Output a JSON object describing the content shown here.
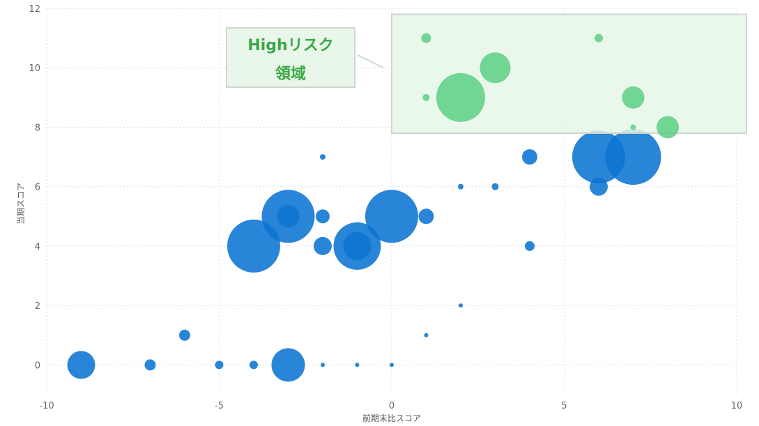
{
  "chart_data": {
    "type": "scatter",
    "xlabel": "前期末比スコア",
    "ylabel": "当期スコア",
    "xlim": [
      -10,
      10
    ],
    "ylim": [
      -1,
      12
    ],
    "x_ticks": [
      -10,
      -5,
      0,
      5,
      10
    ],
    "x_tick_labels": [
      "-10",
      "-5",
      "0",
      "5",
      "10"
    ],
    "y_ticks": [
      0,
      2,
      4,
      6,
      8,
      10,
      12
    ],
    "y_tick_labels": [
      "0",
      "2",
      "4",
      "6",
      "8",
      "10",
      "12"
    ],
    "grid": true,
    "colors": {
      "normal": "#0b74d1",
      "high_risk": "#5ccf84",
      "region_fill": "#e6f6e7",
      "region_stroke": "#cfd5cf",
      "callout_text": "#3aa845"
    },
    "high_risk_region": {
      "x_range": [
        0,
        10
      ],
      "y_range": [
        7.8,
        11.8
      ],
      "label_line1": "Highリスク",
      "label_line2": "領域"
    },
    "points": [
      {
        "x": -9,
        "y": 0,
        "r": 20,
        "risk": "normal"
      },
      {
        "x": -7,
        "y": 0,
        "r": 8,
        "risk": "normal"
      },
      {
        "x": -6,
        "y": 1,
        "r": 8,
        "risk": "normal"
      },
      {
        "x": -5,
        "y": 0,
        "r": 6,
        "risk": "normal"
      },
      {
        "x": -4,
        "y": 0,
        "r": 6,
        "risk": "normal"
      },
      {
        "x": -4,
        "y": 4,
        "r": 38,
        "risk": "normal"
      },
      {
        "x": -3,
        "y": 0,
        "r": 24,
        "risk": "normal"
      },
      {
        "x": -3,
        "y": 5,
        "r": 38,
        "risk": "normal"
      },
      {
        "x": -3,
        "y": 5,
        "r": 16,
        "risk": "normal"
      },
      {
        "x": -2,
        "y": 0,
        "r": 3,
        "risk": "normal"
      },
      {
        "x": -2,
        "y": 4,
        "r": 13,
        "risk": "normal"
      },
      {
        "x": -2,
        "y": 5,
        "r": 10,
        "risk": "normal"
      },
      {
        "x": -2,
        "y": 7,
        "r": 4,
        "risk": "normal"
      },
      {
        "x": -1,
        "y": 0,
        "r": 3,
        "risk": "normal"
      },
      {
        "x": -1,
        "y": 4,
        "r": 34,
        "risk": "normal"
      },
      {
        "x": -1,
        "y": 4,
        "r": 20,
        "risk": "normal"
      },
      {
        "x": 0,
        "y": 0,
        "r": 3,
        "risk": "normal"
      },
      {
        "x": 0,
        "y": 5,
        "r": 38,
        "risk": "normal"
      },
      {
        "x": 1,
        "y": 1,
        "r": 3,
        "risk": "normal"
      },
      {
        "x": 1,
        "y": 5,
        "r": 11,
        "risk": "normal"
      },
      {
        "x": 2,
        "y": 2,
        "r": 3,
        "risk": "normal"
      },
      {
        "x": 2,
        "y": 6,
        "r": 4,
        "risk": "normal"
      },
      {
        "x": 3,
        "y": 6,
        "r": 5,
        "risk": "normal"
      },
      {
        "x": 4,
        "y": 4,
        "r": 7,
        "risk": "normal"
      },
      {
        "x": 4,
        "y": 7,
        "r": 11,
        "risk": "normal"
      },
      {
        "x": 6,
        "y": 6,
        "r": 13,
        "risk": "normal"
      },
      {
        "x": 6,
        "y": 7,
        "r": 38,
        "risk": "normal"
      },
      {
        "x": 7,
        "y": 7,
        "r": 40,
        "risk": "normal"
      },
      {
        "x": 1,
        "y": 11,
        "r": 7,
        "risk": "high"
      },
      {
        "x": 1,
        "y": 9,
        "r": 5,
        "risk": "high"
      },
      {
        "x": 2,
        "y": 9,
        "r": 35,
        "risk": "high"
      },
      {
        "x": 3,
        "y": 10,
        "r": 22,
        "risk": "high"
      },
      {
        "x": 6,
        "y": 11,
        "r": 6,
        "risk": "high"
      },
      {
        "x": 7,
        "y": 9,
        "r": 16,
        "risk": "high"
      },
      {
        "x": 7,
        "y": 8,
        "r": 4,
        "risk": "high"
      },
      {
        "x": 8,
        "y": 8,
        "r": 16,
        "risk": "high"
      }
    ]
  }
}
